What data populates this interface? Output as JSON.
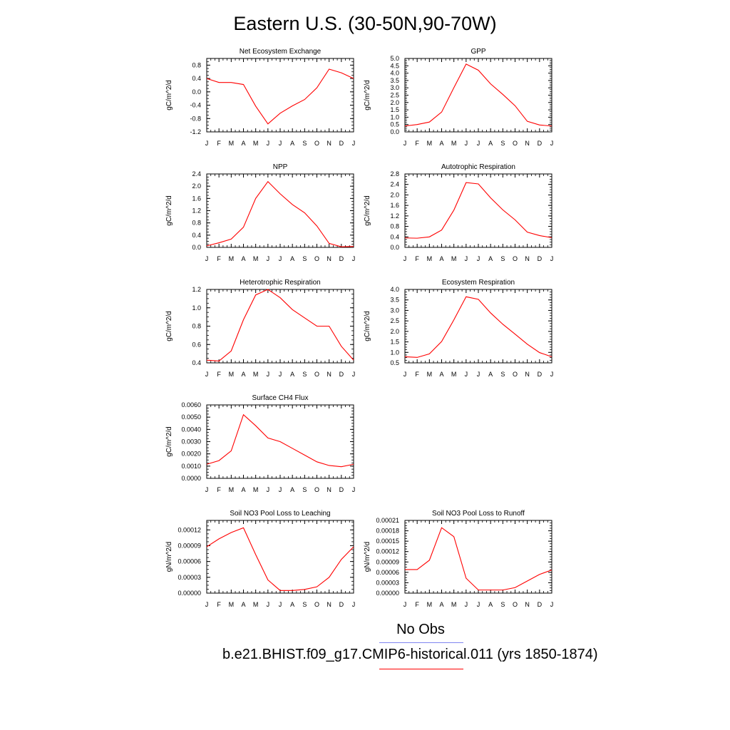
{
  "title": "Eastern U.S. (30-50N,90-70W)",
  "legend": {
    "obs_label": "No Obs",
    "obs_color": "#7f86f0",
    "model_label": "b.e21.BHIST.f09_g17.CMIP6-historical.011 (yrs 1850-1874)",
    "model_color": "#ff0000"
  },
  "chart_data": [
    {
      "type": "line",
      "title": "Net Ecosystem Exchange",
      "ylabel": "gC/m^2/d",
      "xlabel": "",
      "categories": [
        "J",
        "F",
        "M",
        "A",
        "M",
        "J",
        "J",
        "A",
        "S",
        "O",
        "N",
        "D",
        "J"
      ],
      "ylim": [
        -1.2,
        1.0
      ],
      "yticks": [
        -1.2,
        -0.8,
        -0.4,
        0.0,
        0.4,
        0.8
      ],
      "ytick_labels": [
        "-1.2",
        "-0.8",
        "-0.4",
        "0.0",
        "0.4",
        "0.8"
      ],
      "series": [
        {
          "values": [
            0.4,
            0.28,
            0.28,
            0.22,
            -0.43,
            -0.96,
            -0.64,
            -0.42,
            -0.23,
            0.12,
            0.68,
            0.57,
            0.4
          ],
          "color": "#ff0000"
        }
      ]
    },
    {
      "type": "line",
      "title": "GPP",
      "ylabel": "gC/m^2/d",
      "xlabel": "",
      "categories": [
        "J",
        "F",
        "M",
        "A",
        "M",
        "J",
        "J",
        "A",
        "S",
        "O",
        "N",
        "D",
        "J"
      ],
      "ylim": [
        0.0,
        5.0
      ],
      "yticks": [
        0,
        0.5,
        1,
        1.5,
        2,
        2.5,
        3,
        3.5,
        4,
        4.5,
        5
      ],
      "ytick_labels": [
        "0.0",
        "0.5",
        "1.0",
        "1.5",
        "2.0",
        "2.5",
        "3.0",
        "3.5",
        "4.0",
        "4.5",
        "5.0"
      ],
      "series": [
        {
          "values": [
            0.4,
            0.5,
            0.67,
            1.35,
            3.01,
            4.62,
            4.2,
            3.27,
            2.55,
            1.78,
            0.72,
            0.47,
            0.4
          ],
          "color": "#ff0000"
        }
      ]
    },
    {
      "type": "line",
      "title": "NPP",
      "ylabel": "gC/m^2/d",
      "xlabel": "",
      "categories": [
        "J",
        "F",
        "M",
        "A",
        "M",
        "J",
        "J",
        "A",
        "S",
        "O",
        "N",
        "D",
        "J"
      ],
      "ylim": [
        0.0,
        2.4
      ],
      "yticks": [
        0,
        0.4,
        0.8,
        1.2,
        1.6,
        2.0,
        2.4
      ],
      "ytick_labels": [
        "0.0",
        "0.4",
        "0.8",
        "1.2",
        "1.6",
        "2.0",
        "2.4"
      ],
      "series": [
        {
          "values": [
            0.05,
            0.15,
            0.27,
            0.66,
            1.6,
            2.15,
            1.75,
            1.4,
            1.13,
            0.7,
            0.13,
            0.02,
            0.03
          ],
          "color": "#ff0000"
        }
      ]
    },
    {
      "type": "line",
      "title": "Autotrophic Respiration",
      "ylabel": "gC/m^2/d",
      "xlabel": "",
      "categories": [
        "J",
        "F",
        "M",
        "A",
        "M",
        "J",
        "J",
        "A",
        "S",
        "O",
        "N",
        "D",
        "J"
      ],
      "ylim": [
        0.0,
        2.8
      ],
      "yticks": [
        0,
        0.4,
        0.8,
        1.2,
        1.6,
        2.0,
        2.4,
        2.8
      ],
      "ytick_labels": [
        "0.0",
        "0.4",
        "0.8",
        "1.2",
        "1.6",
        "2.0",
        "2.4",
        "2.8"
      ],
      "series": [
        {
          "values": [
            0.36,
            0.35,
            0.4,
            0.66,
            1.42,
            2.47,
            2.42,
            1.89,
            1.43,
            1.05,
            0.58,
            0.45,
            0.37
          ],
          "color": "#ff0000"
        }
      ]
    },
    {
      "type": "line",
      "title": "Heterotrophic Respiration",
      "ylabel": "gC/m^2/d",
      "xlabel": "",
      "categories": [
        "J",
        "F",
        "M",
        "A",
        "M",
        "J",
        "J",
        "A",
        "S",
        "O",
        "N",
        "D",
        "J"
      ],
      "ylim": [
        0.4,
        1.2
      ],
      "yticks": [
        0.4,
        0.6,
        0.8,
        1.0,
        1.2
      ],
      "ytick_labels": [
        "0.4",
        "0.6",
        "0.8",
        "1.0",
        "1.2"
      ],
      "series": [
        {
          "values": [
            0.43,
            0.42,
            0.53,
            0.87,
            1.14,
            1.2,
            1.11,
            0.98,
            0.89,
            0.8,
            0.8,
            0.58,
            0.43
          ],
          "color": "#ff0000"
        }
      ]
    },
    {
      "type": "line",
      "title": "Ecosystem Respiration",
      "ylabel": "gC/m^2/d",
      "xlabel": "",
      "categories": [
        "J",
        "F",
        "M",
        "A",
        "M",
        "J",
        "J",
        "A",
        "S",
        "O",
        "N",
        "D",
        "J"
      ],
      "ylim": [
        0.5,
        4.0
      ],
      "yticks": [
        0.5,
        1.0,
        1.5,
        2.0,
        2.5,
        3.0,
        3.5,
        4.0
      ],
      "ytick_labels": [
        "0.5",
        "1.0",
        "1.5",
        "2.0",
        "2.5",
        "3.0",
        "3.5",
        "4.0"
      ],
      "series": [
        {
          "values": [
            0.79,
            0.76,
            0.93,
            1.52,
            2.55,
            3.65,
            3.53,
            2.88,
            2.34,
            1.87,
            1.39,
            0.99,
            0.79
          ],
          "color": "#ff0000"
        }
      ]
    },
    {
      "type": "line",
      "title": "Surface CH4 Flux",
      "ylabel": "gC/m^2/d",
      "xlabel": "",
      "categories": [
        "J",
        "F",
        "M",
        "A",
        "M",
        "J",
        "J",
        "A",
        "S",
        "O",
        "N",
        "D",
        "J"
      ],
      "ylim": [
        0.0,
        0.006
      ],
      "yticks": [
        0,
        0.001,
        0.002,
        0.003,
        0.004,
        0.005,
        0.006
      ],
      "ytick_labels": [
        "0.0000",
        "0.0010",
        "0.0020",
        "0.0030",
        "0.0040",
        "0.0050",
        "0.0060"
      ],
      "series": [
        {
          "values": [
            0.00115,
            0.00145,
            0.00225,
            0.0052,
            0.0043,
            0.0033,
            0.003,
            0.00245,
            0.0019,
            0.00135,
            0.00105,
            0.00095,
            0.00115
          ],
          "color": "#ff0000"
        }
      ]
    },
    {
      "type": "line",
      "title": "Soil NO3 Pool Loss to Leaching",
      "ylabel": "gN/m^2/d",
      "xlabel": "",
      "categories": [
        "J",
        "F",
        "M",
        "A",
        "M",
        "J",
        "J",
        "A",
        "S",
        "O",
        "N",
        "D",
        "J"
      ],
      "ylim": [
        0.0,
        0.000138
      ],
      "yticks": [
        0,
        3e-05,
        6e-05,
        9e-05,
        0.00012
      ],
      "ytick_labels": [
        "0.00000",
        "0.00003",
        "0.00006",
        "0.00009",
        "0.00012"
      ],
      "series": [
        {
          "values": [
            8.8e-05,
            0.000103,
            0.000115,
            0.000124,
            7.3e-05,
            2.5e-05,
            5e-06,
            5e-06,
            7e-06,
            1.2e-05,
            3e-05,
            6.4e-05,
            8.8e-05
          ],
          "color": "#ff0000"
        }
      ]
    },
    {
      "type": "line",
      "title": "Soil NO3 Pool Loss to Runoff",
      "ylabel": "gN/m^2/d",
      "xlabel": "",
      "categories": [
        "J",
        "F",
        "M",
        "A",
        "M",
        "J",
        "J",
        "A",
        "S",
        "O",
        "N",
        "D",
        "J"
      ],
      "ylim": [
        0.0,
        0.00021
      ],
      "yticks": [
        0,
        3e-05,
        6e-05,
        9e-05,
        0.00012,
        0.00015,
        0.00018,
        0.00021
      ],
      "ytick_labels": [
        "0.00000",
        "0.00003",
        "0.00006",
        "0.00009",
        "0.00012",
        "0.00015",
        "0.00018",
        "0.00021"
      ],
      "series": [
        {
          "values": [
            6.8e-05,
            6.8e-05,
            9.5e-05,
            0.000189,
            0.000163,
            4.3e-05,
            9e-06,
            9e-06,
            9e-06,
            1.6e-05,
            3.5e-05,
            5.4e-05,
            6.7e-05
          ],
          "color": "#ff0000"
        }
      ]
    }
  ]
}
